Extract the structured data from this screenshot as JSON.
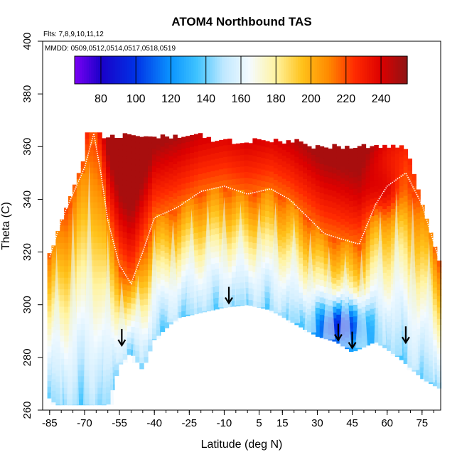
{
  "chart_data": {
    "type": "heatmap",
    "title": "ATOM4 Northbound TAS",
    "xlabel": "Latitude (deg N)",
    "ylabel": "Theta (C)",
    "flights_note": "Flts: 7,8,9,10,11,12",
    "dates_note": "MMDD: 0509,0512,0514,0517,0518,0519",
    "xlim": [
      -88,
      83
    ],
    "ylim": [
      260,
      400
    ],
    "x_ticks": [
      -85,
      -70,
      -55,
      -40,
      -25,
      -10,
      5,
      15,
      30,
      45,
      60,
      75
    ],
    "y_ticks": [
      260,
      280,
      300,
      320,
      340,
      360,
      380,
      400
    ],
    "colorbar": {
      "range": [
        65,
        255
      ],
      "ticks": [
        80,
        100,
        120,
        140,
        160,
        180,
        200,
        220,
        240
      ],
      "stops": [
        {
          "v": 65,
          "color": "#7b00f5"
        },
        {
          "v": 80,
          "color": "#1a00c8"
        },
        {
          "v": 100,
          "color": "#0032e6"
        },
        {
          "v": 120,
          "color": "#0b95ff"
        },
        {
          "v": 135,
          "color": "#3fc3ff"
        },
        {
          "v": 150,
          "color": "#bfe8ff"
        },
        {
          "v": 165,
          "color": "#f4fbff"
        },
        {
          "v": 180,
          "color": "#fff3a0"
        },
        {
          "v": 195,
          "color": "#ffc21a"
        },
        {
          "v": 210,
          "color": "#ff8a00"
        },
        {
          "v": 225,
          "color": "#ff2a00"
        },
        {
          "v": 240,
          "color": "#dc0000"
        },
        {
          "v": 255,
          "color": "#8e1515"
        }
      ]
    },
    "surface_boundary": [
      [
        -88,
        267
      ],
      [
        -82,
        262
      ],
      [
        -75,
        262
      ],
      [
        -60,
        262
      ],
      [
        -55,
        277
      ],
      [
        -50,
        282
      ],
      [
        -45,
        275
      ],
      [
        -40,
        287
      ],
      [
        -30,
        295
      ],
      [
        -20,
        297
      ],
      [
        -10,
        299
      ],
      [
        0,
        300
      ],
      [
        10,
        298
      ],
      [
        20,
        293
      ],
      [
        30,
        288
      ],
      [
        38,
        286
      ],
      [
        45,
        282
      ],
      [
        55,
        286
      ],
      [
        65,
        280
      ],
      [
        75,
        272
      ],
      [
        83,
        268
      ]
    ],
    "tropopause_trace": [
      [
        -85,
        318
      ],
      [
        -80,
        332
      ],
      [
        -75,
        342
      ],
      [
        -70,
        352
      ],
      [
        -66,
        365
      ],
      [
        -63,
        350
      ],
      [
        -60,
        332
      ],
      [
        -55,
        315
      ],
      [
        -50,
        308
      ],
      [
        -45,
        320
      ],
      [
        -40,
        333
      ],
      [
        -30,
        337
      ],
      [
        -20,
        343
      ],
      [
        -10,
        345
      ],
      [
        0,
        342
      ],
      [
        10,
        344
      ],
      [
        18,
        340
      ],
      [
        25,
        334
      ],
      [
        33,
        327
      ],
      [
        40,
        325
      ],
      [
        48,
        323
      ],
      [
        55,
        338
      ],
      [
        60,
        345
      ],
      [
        68,
        350
      ],
      [
        75,
        338
      ],
      [
        82,
        318
      ]
    ],
    "profile_latitudes": [
      -82,
      -75,
      -68,
      -60,
      -54,
      -47,
      -40,
      -32,
      -24,
      -17,
      -10,
      -3,
      5,
      12,
      20,
      27,
      35,
      42,
      49,
      57,
      64,
      71,
      78
    ],
    "arrows": [
      {
        "lat": -54,
        "theta": 287
      },
      {
        "lat": -8,
        "theta": 303
      },
      {
        "lat": 39,
        "theta": 289
      },
      {
        "lat": 45,
        "theta": 286
      },
      {
        "lat": 68,
        "theta": 288
      }
    ],
    "field_model": {
      "low_value": 140,
      "lapse_per_deg": 3.2,
      "cold_pool": {
        "lat": 40,
        "theta": 292,
        "value": 95,
        "width_lat": 12,
        "width_theta": 9
      },
      "warm_core": {
        "lat": 58,
        "theta": 345,
        "value": 250
      }
    }
  }
}
